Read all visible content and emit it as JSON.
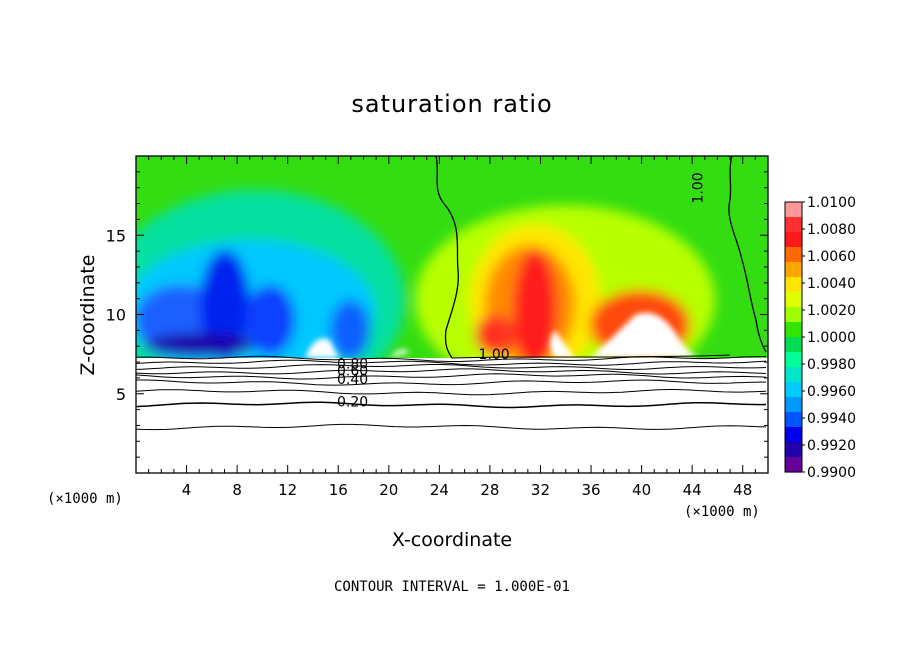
{
  "chart_data": {
    "type": "heatmap",
    "title": "saturation ratio",
    "xlabel": "X-coordinate",
    "ylabel": "Z-coordinate",
    "x_unit_left": "(×1000 m)",
    "x_unit_right": "(×1000 m)",
    "xlim": [
      0,
      50
    ],
    "ylim": [
      0,
      20
    ],
    "x_ticks": [
      4,
      8,
      12,
      16,
      20,
      24,
      28,
      32,
      36,
      40,
      44,
      48
    ],
    "y_ticks": [
      5,
      10,
      15
    ],
    "footer": "CONTOUR INTERVAL = 1.000E-01",
    "colorbar": {
      "min": 0.99,
      "max": 1.01,
      "labels": [
        "1.0100",
        "1.0080",
        "1.0060",
        "1.0040",
        "1.0020",
        "1.0000",
        "0.9980",
        "0.9960",
        "0.9940",
        "0.9920",
        "0.9900"
      ],
      "colors": [
        "#ff9999",
        "#ff3030",
        "#ff1a1a",
        "#ff6a00",
        "#ffa500",
        "#ffe600",
        "#e0ff00",
        "#9dff00",
        "#33e600",
        "#00dd55",
        "#00ff99",
        "#00e6cc",
        "#00ccff",
        "#0099ff",
        "#0055ff",
        "#0000ee",
        "#2200aa",
        "#660099"
      ]
    },
    "surface_level": 7.4,
    "contour_labels": [
      {
        "text": "0.80",
        "x": 15.9,
        "y": 6.6
      },
      {
        "text": "0.60",
        "x": 15.9,
        "y": 6.15
      },
      {
        "text": "0.40",
        "x": 15.9,
        "y": 5.6
      },
      {
        "text": "0.20",
        "x": 15.9,
        "y": 4.2
      },
      {
        "text": "1.00",
        "x": 27.1,
        "y": 7.2
      },
      {
        "text": "1.00",
        "x": 44.8,
        "y": 17.0
      }
    ],
    "contour_levels": [
      {
        "level": 0.1,
        "y": 2.9
      },
      {
        "level": 0.2,
        "y": 4.3
      },
      {
        "level": 0.3,
        "y": 5.1
      },
      {
        "level": 0.4,
        "y": 5.7
      },
      {
        "level": 0.5,
        "y": 6.1
      },
      {
        "level": 0.6,
        "y": 6.4
      },
      {
        "level": 0.7,
        "y": 6.7
      },
      {
        "level": 0.8,
        "y": 6.95
      },
      {
        "level": 0.9,
        "y": 7.2
      }
    ]
  }
}
